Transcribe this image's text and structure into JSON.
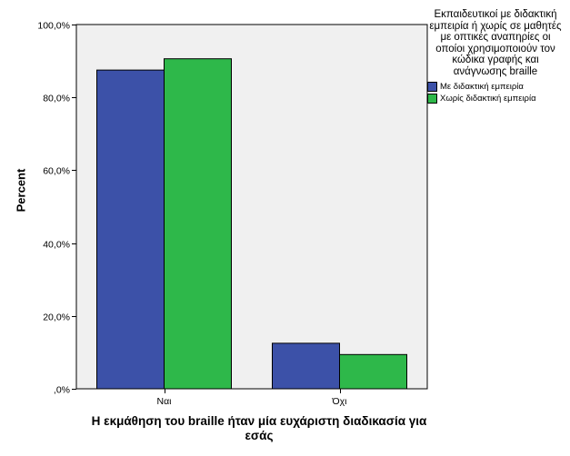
{
  "chart_data": {
    "type": "bar",
    "categories": [
      "Ναι",
      "Όχι"
    ],
    "series": [
      {
        "name": "Με διδακτική εμπειρία",
        "values": [
          87.5,
          12.5
        ],
        "color": "#3c51a8"
      },
      {
        "name": "Χωρίς διδακτική εμπειρία",
        "values": [
          90.6,
          9.4
        ],
        "color": "#2eb84a"
      }
    ],
    "xlabel": "Η εκμάθηση του braille ήταν μία ευχάριστη διαδικασία για εσάς",
    "ylabel": "Percent",
    "ylim": [
      0,
      100
    ],
    "yticks": [
      "100,0%",
      "80,0%",
      "60,0%",
      "40,0%",
      "20,0%",
      ",0%"
    ],
    "legend": {
      "title": "Εκπαιδευτικοί με διδακτική εμπειρία ή χωρίς σε μαθητές με οπτικές αναπηρίες οι οποίοι χρησιμοποιούν τον κώδικα γραφής και ανάγνωσης braille",
      "placement": "right"
    },
    "grid": false,
    "plot_background": "#f0f0f0"
  }
}
